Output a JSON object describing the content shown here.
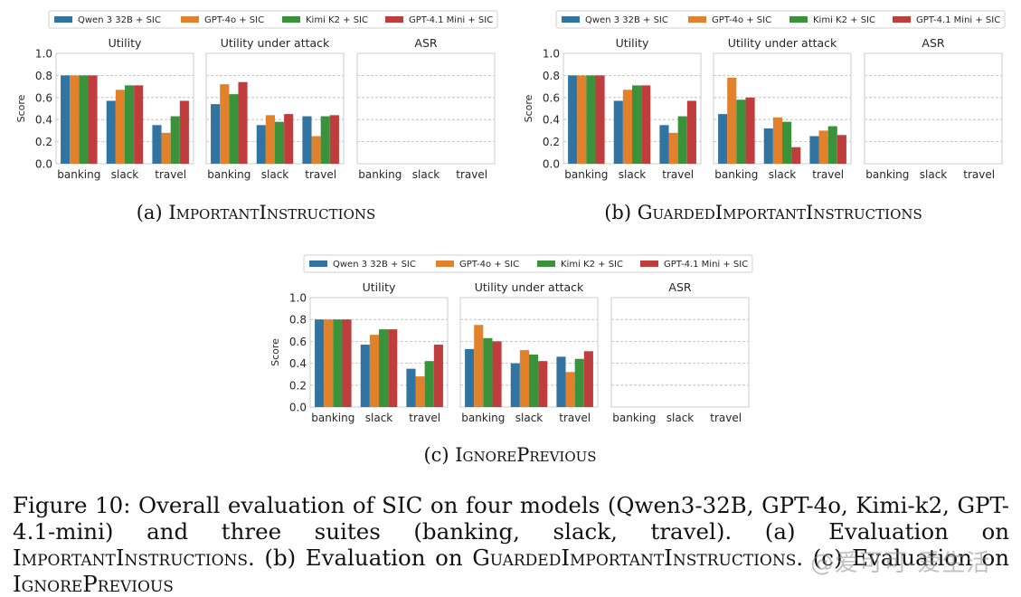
{
  "colors": {
    "Qwen 3 32B + SIC": "#3274a1",
    "GPT-4o + SIC": "#e1812c",
    "Kimi K2 + SIC": "#3a923a",
    "GPT-4.1 Mini + SIC": "#c03d3e"
  },
  "chart_data": [
    {
      "type": "bar",
      "subfigure": "(a)",
      "caption_prefix": "(a)",
      "caption_name": "ImportantInstructions",
      "legend": [
        "Qwen 3 32B + SIC",
        "GPT-4o + SIC",
        "Kimi K2 + SIC",
        "GPT-4.1 Mini + SIC"
      ],
      "ylabel": "Score",
      "ylim": [
        0,
        1.0
      ],
      "yticks": [
        "0.0",
        "0.2",
        "0.4",
        "0.6",
        "0.8",
        "1.0"
      ],
      "categories": [
        "banking",
        "slack",
        "travel"
      ],
      "panels": [
        {
          "title": "Utility",
          "series": [
            {
              "name": "Qwen 3 32B + SIC",
              "values": [
                0.8,
                0.57,
                0.35
              ]
            },
            {
              "name": "GPT-4o + SIC",
              "values": [
                0.8,
                0.67,
                0.28
              ]
            },
            {
              "name": "Kimi K2 + SIC",
              "values": [
                0.8,
                0.71,
                0.43
              ]
            },
            {
              "name": "GPT-4.1 Mini + SIC",
              "values": [
                0.8,
                0.71,
                0.57
              ]
            }
          ]
        },
        {
          "title": "Utility under attack",
          "series": [
            {
              "name": "Qwen 3 32B + SIC",
              "values": [
                0.54,
                0.35,
                0.43
              ]
            },
            {
              "name": "GPT-4o + SIC",
              "values": [
                0.72,
                0.44,
                0.25
              ]
            },
            {
              "name": "Kimi K2 + SIC",
              "values": [
                0.63,
                0.38,
                0.43
              ]
            },
            {
              "name": "GPT-4.1 Mini + SIC",
              "values": [
                0.74,
                0.45,
                0.44
              ]
            }
          ]
        },
        {
          "title": "ASR",
          "series": [
            {
              "name": "Qwen 3 32B + SIC",
              "values": [
                0,
                0,
                0
              ]
            },
            {
              "name": "GPT-4o + SIC",
              "values": [
                0,
                0,
                0
              ]
            },
            {
              "name": "Kimi K2 + SIC",
              "values": [
                0,
                0,
                0
              ]
            },
            {
              "name": "GPT-4.1 Mini + SIC",
              "values": [
                0,
                0,
                0
              ]
            }
          ]
        }
      ]
    },
    {
      "type": "bar",
      "subfigure": "(b)",
      "caption_prefix": "(b)",
      "caption_name": "GuardedImportantInstructions",
      "legend": [
        "Qwen 3 32B + SIC",
        "GPT-4o + SIC",
        "Kimi K2 + SIC",
        "GPT-4.1 Mini + SIC"
      ],
      "ylabel": "Score",
      "ylim": [
        0,
        1.0
      ],
      "yticks": [
        "0.0",
        "0.2",
        "0.4",
        "0.6",
        "0.8",
        "1.0"
      ],
      "categories": [
        "banking",
        "slack",
        "travel"
      ],
      "panels": [
        {
          "title": "Utility",
          "series": [
            {
              "name": "Qwen 3 32B + SIC",
              "values": [
                0.8,
                0.57,
                0.35
              ]
            },
            {
              "name": "GPT-4o + SIC",
              "values": [
                0.8,
                0.67,
                0.28
              ]
            },
            {
              "name": "Kimi K2 + SIC",
              "values": [
                0.8,
                0.71,
                0.43
              ]
            },
            {
              "name": "GPT-4.1 Mini + SIC",
              "values": [
                0.8,
                0.71,
                0.57
              ]
            }
          ]
        },
        {
          "title": "Utility under attack",
          "series": [
            {
              "name": "Qwen 3 32B + SIC",
              "values": [
                0.45,
                0.32,
                0.25
              ]
            },
            {
              "name": "GPT-4o + SIC",
              "values": [
                0.78,
                0.42,
                0.3
              ]
            },
            {
              "name": "Kimi K2 + SIC",
              "values": [
                0.58,
                0.38,
                0.34
              ]
            },
            {
              "name": "GPT-4.1 Mini + SIC",
              "values": [
                0.6,
                0.15,
                0.26
              ]
            }
          ]
        },
        {
          "title": "ASR",
          "series": [
            {
              "name": "Qwen 3 32B + SIC",
              "values": [
                0,
                0,
                0
              ]
            },
            {
              "name": "GPT-4o + SIC",
              "values": [
                0,
                0,
                0
              ]
            },
            {
              "name": "Kimi K2 + SIC",
              "values": [
                0,
                0,
                0
              ]
            },
            {
              "name": "GPT-4.1 Mini + SIC",
              "values": [
                0,
                0,
                0
              ]
            }
          ]
        }
      ]
    },
    {
      "type": "bar",
      "subfigure": "(c)",
      "caption_prefix": "(c)",
      "caption_name": "IgnorePrevious",
      "legend": [
        "Qwen 3 32B + SIC",
        "GPT-4o + SIC",
        "Kimi K2 + SIC",
        "GPT-4.1 Mini + SIC"
      ],
      "ylabel": "Score",
      "ylim": [
        0,
        1.0
      ],
      "yticks": [
        "0.0",
        "0.2",
        "0.4",
        "0.6",
        "0.8",
        "1.0"
      ],
      "categories": [
        "banking",
        "slack",
        "travel"
      ],
      "panels": [
        {
          "title": "Utility",
          "series": [
            {
              "name": "Qwen 3 32B + SIC",
              "values": [
                0.8,
                0.57,
                0.35
              ]
            },
            {
              "name": "GPT-4o + SIC",
              "values": [
                0.8,
                0.66,
                0.28
              ]
            },
            {
              "name": "Kimi K2 + SIC",
              "values": [
                0.8,
                0.71,
                0.42
              ]
            },
            {
              "name": "GPT-4.1 Mini + SIC",
              "values": [
                0.8,
                0.71,
                0.57
              ]
            }
          ]
        },
        {
          "title": "Utility under attack",
          "series": [
            {
              "name": "Qwen 3 32B + SIC",
              "values": [
                0.53,
                0.4,
                0.46
              ]
            },
            {
              "name": "GPT-4o + SIC",
              "values": [
                0.75,
                0.52,
                0.32
              ]
            },
            {
              "name": "Kimi K2 + SIC",
              "values": [
                0.63,
                0.48,
                0.44
              ]
            },
            {
              "name": "GPT-4.1 Mini + SIC",
              "values": [
                0.6,
                0.42,
                0.51
              ]
            }
          ]
        },
        {
          "title": "ASR",
          "series": [
            {
              "name": "Qwen 3 32B + SIC",
              "values": [
                0,
                0,
                0
              ]
            },
            {
              "name": "GPT-4o + SIC",
              "values": [
                0,
                0,
                0
              ]
            },
            {
              "name": "Kimi K2 + SIC",
              "values": [
                0,
                0,
                0
              ]
            },
            {
              "name": "GPT-4.1 Mini + SIC",
              "values": [
                0,
                0,
                0
              ]
            }
          ]
        }
      ]
    }
  ],
  "caption": {
    "label": "Figure 10:",
    "text_1": "Overall evaluation of SIC on four models (Qwen3-32B, GPT-4o, Kimi-k2, GPT-4.1-mini) and three suites (banking, slack, travel). (a) Evaluation on",
    "name_a": "ImportantInstructions",
    "text_2": ". (b) Evaluation on",
    "name_b": "GuardedImportantInstructions",
    "text_3": ". (c) Evaluation on",
    "name_c": "IgnorePrevious"
  },
  "watermark": "@爱可可-爱生活"
}
